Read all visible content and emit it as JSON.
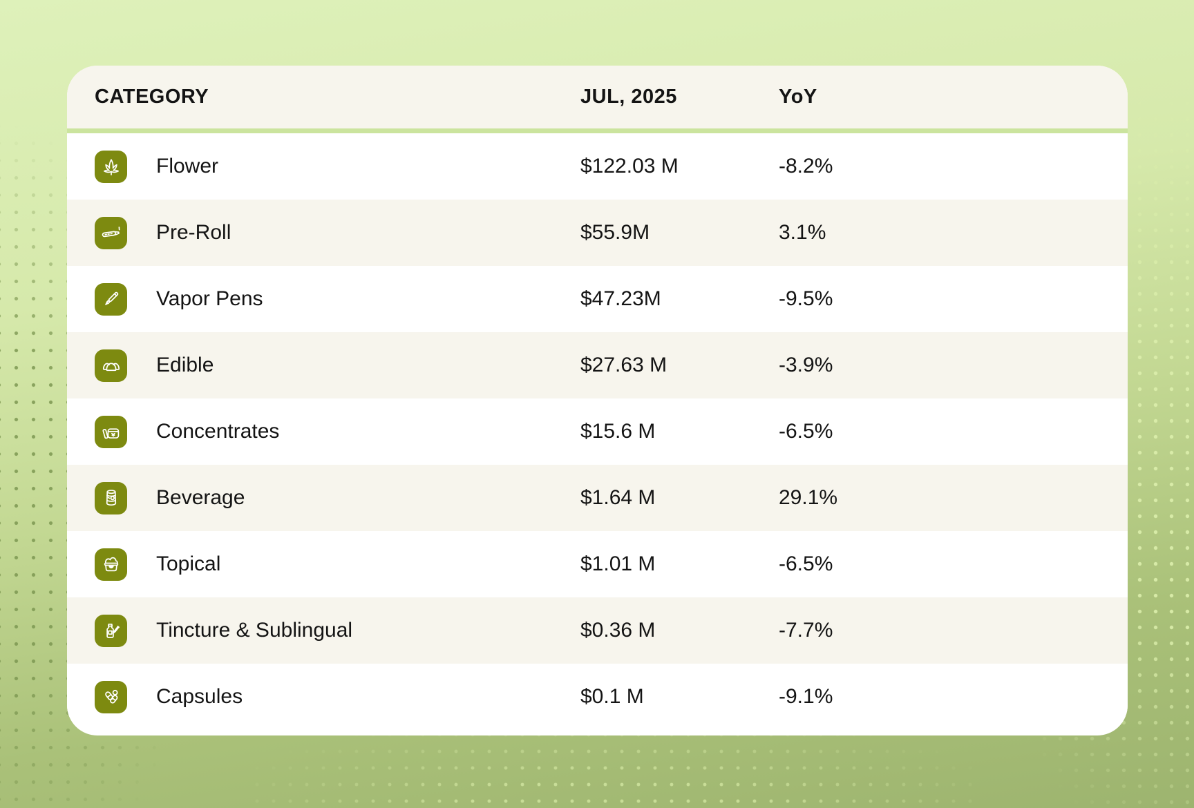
{
  "table": {
    "columns": {
      "category": "CATEGORY",
      "value": "JUL, 2025",
      "yoy": "YoY"
    },
    "rows": [
      {
        "icon": "flower-icon",
        "label": "Flower",
        "value": "$122.03 M",
        "yoy": "-8.2%"
      },
      {
        "icon": "preroll-icon",
        "label": "Pre-Roll",
        "value": "$55.9M",
        "yoy": "3.1%"
      },
      {
        "icon": "vapor-pen-icon",
        "label": "Vapor Pens",
        "value": "$47.23M",
        "yoy": "-9.5%"
      },
      {
        "icon": "edible-icon",
        "label": "Edible",
        "value": "$27.63 M",
        "yoy": "-3.9%"
      },
      {
        "icon": "concentrates-icon",
        "label": "Concentrates",
        "value": "$15.6 M",
        "yoy": "-6.5%"
      },
      {
        "icon": "beverage-icon",
        "label": "Beverage",
        "value": "$1.64 M",
        "yoy": "29.1%"
      },
      {
        "icon": "topical-icon",
        "label": "Topical",
        "value": "$1.01 M",
        "yoy": "-6.5%"
      },
      {
        "icon": "tincture-icon",
        "label": "Tincture & Sublingual",
        "value": "$0.36 M",
        "yoy": "-7.7%"
      },
      {
        "icon": "capsules-icon",
        "label": "Capsules",
        "value": "$0.1 M",
        "yoy": "-9.1%"
      }
    ]
  },
  "colors": {
    "icon_badge": "#7d8a10",
    "card_cream": "#f7f5ed",
    "card_white": "#ffffff",
    "header_divider_green": "#cbe49e",
    "background_light_green": "#d6e9ab",
    "background_sage_green": "#9db46f",
    "text": "#141414"
  },
  "chart_data": {
    "type": "table",
    "title": "",
    "columns": [
      "CATEGORY",
      "JUL, 2025",
      "YoY"
    ],
    "categories": [
      "Flower",
      "Pre-Roll",
      "Vapor Pens",
      "Edible",
      "Concentrates",
      "Beverage",
      "Topical",
      "Tincture & Sublingual",
      "Capsules"
    ],
    "series": [
      {
        "name": "JUL, 2025 sales ($M)",
        "values": [
          122.03,
          55.9,
          47.23,
          27.63,
          15.6,
          1.64,
          1.01,
          0.36,
          0.1
        ]
      },
      {
        "name": "YoY (%)",
        "values": [
          -8.2,
          3.1,
          -9.5,
          -3.9,
          -6.5,
          29.1,
          -6.5,
          -7.7,
          -9.1
        ]
      }
    ]
  }
}
